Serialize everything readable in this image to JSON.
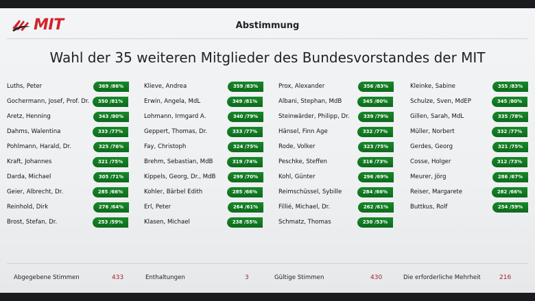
{
  "brand": {
    "logo_text": "MIT"
  },
  "header": {
    "title": "Abstimmung"
  },
  "main": {
    "title": "Wahl der 35 weiteren Mitglieder des Bundesvorstandes der MIT"
  },
  "columns": [
    {
      "entries": [
        {
          "name": "Luths, Peter",
          "result": "369 /86%"
        },
        {
          "name": "Gochermann, Josef, Prof. Dr.",
          "result": "350 /81%"
        },
        {
          "name": "Aretz, Henning",
          "result": "343 /80%"
        },
        {
          "name": "Dahms, Walentina",
          "result": "333 /77%"
        },
        {
          "name": "Pohlmann, Harald, Dr.",
          "result": "325 /76%"
        },
        {
          "name": "Kraft, Johannes",
          "result": "321 /75%"
        },
        {
          "name": "Darda, Michael",
          "result": "305 /71%"
        },
        {
          "name": "Geier, Albrecht, Dr.",
          "result": "285 /66%"
        },
        {
          "name": "Reinhold, Dirk",
          "result": "276 /64%"
        },
        {
          "name": "Brost, Stefan, Dr.",
          "result": "253 /59%"
        }
      ]
    },
    {
      "entries": [
        {
          "name": "Klieve, Andrea",
          "result": "359 /83%"
        },
        {
          "name": "Erwin, Angela, MdL",
          "result": "349 /81%"
        },
        {
          "name": "Lohmann, Irmgard A.",
          "result": "340 /79%"
        },
        {
          "name": "Geppert, Thomas, Dr.",
          "result": "333 /77%"
        },
        {
          "name": "Fay, Christoph",
          "result": "324 /75%"
        },
        {
          "name": "Brehm, Sebastian, MdB",
          "result": "319 /74%"
        },
        {
          "name": "Kippels, Georg, Dr., MdB",
          "result": "299 /70%"
        },
        {
          "name": "Kohler, Bärbel Edith",
          "result": "285 /66%"
        },
        {
          "name": "Erl, Peter",
          "result": "264 /61%"
        },
        {
          "name": "Klasen, Michael",
          "result": "238 /55%"
        }
      ]
    },
    {
      "entries": [
        {
          "name": "Prox, Alexander",
          "result": "356 /83%"
        },
        {
          "name": "Albani, Stephan, MdB",
          "result": "345 /80%"
        },
        {
          "name": "Steinwärder, Philipp, Dr.",
          "result": "339 /79%"
        },
        {
          "name": "Hänsel, Finn Age",
          "result": "332 /77%"
        },
        {
          "name": "Rode, Volker",
          "result": "323 /75%"
        },
        {
          "name": "Peschke, Steffen",
          "result": "316 /73%"
        },
        {
          "name": "Kohl, Günter",
          "result": "296 /69%"
        },
        {
          "name": "Reimschüssel, Sybille",
          "result": "284 /66%"
        },
        {
          "name": "Fillié, Michael, Dr.",
          "result": "262 /61%"
        },
        {
          "name": "Schmatz, Thomas",
          "result": "230 /53%"
        }
      ]
    },
    {
      "entries": [
        {
          "name": "Kleinke, Sabine",
          "result": "355 /83%"
        },
        {
          "name": "Schulze, Sven, MdEP",
          "result": "345 /80%"
        },
        {
          "name": "Gillen, Sarah, MdL",
          "result": "335 /78%"
        },
        {
          "name": "Müller, Norbert",
          "result": "332 /77%"
        },
        {
          "name": "Gerdes, Georg",
          "result": "321 /75%"
        },
        {
          "name": "Cosse, Holger",
          "result": "312 /73%"
        },
        {
          "name": "Meurer, Jörg",
          "result": "286 /67%"
        },
        {
          "name": "Reiser, Margarete",
          "result": "282 /66%"
        },
        {
          "name": "Buttkus, Rolf",
          "result": "254 /59%"
        }
      ]
    }
  ],
  "footer": {
    "cast_label": "Abgegebene Stimmen",
    "cast_value": "433",
    "abstain_label": "Enthaltungen",
    "abstain_value": "3",
    "valid_label": "Gültige Stimmen",
    "valid_value": "430",
    "majority_label": "Die erforderliche Mehrheit",
    "majority_value": "216"
  },
  "colors": {
    "brand_red": "#d2232a",
    "badge_green": "#138022",
    "footer_number_red": "#b31b22"
  }
}
